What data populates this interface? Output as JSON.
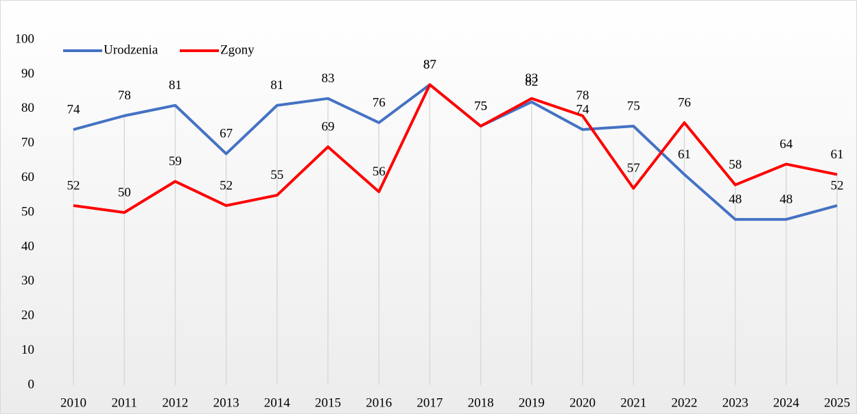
{
  "chart_data": {
    "type": "line",
    "categories": [
      "2010",
      "2011",
      "2012",
      "2013",
      "2014",
      "2015",
      "2016",
      "2017",
      "2018",
      "2019",
      "2020",
      "2021",
      "2022",
      "2023",
      "2024",
      "2025"
    ],
    "series": [
      {
        "name": "Urodzenia",
        "color": "#4472c4",
        "values": [
          74,
          78,
          81,
          67,
          81,
          83,
          76,
          87,
          75,
          82,
          74,
          75,
          61,
          48,
          48,
          52
        ]
      },
      {
        "name": "Zgony",
        "color": "#ff0000",
        "values": [
          52,
          50,
          59,
          52,
          55,
          69,
          56,
          87,
          75,
          83,
          78,
          57,
          76,
          58,
          64,
          61
        ]
      }
    ],
    "ylim": [
      0,
      100
    ],
    "yticks": [
      0,
      10,
      20,
      30,
      40,
      50,
      60,
      70,
      80,
      90,
      100
    ],
    "legend": "top-left",
    "grid": false
  }
}
